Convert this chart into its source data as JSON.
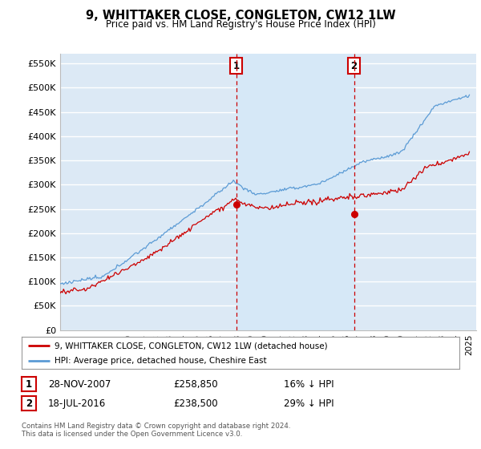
{
  "title": "9, WHITTAKER CLOSE, CONGLETON, CW12 1LW",
  "subtitle": "Price paid vs. HM Land Registry's House Price Index (HPI)",
  "ylabel_ticks": [
    "£0",
    "£50K",
    "£100K",
    "£150K",
    "£200K",
    "£250K",
    "£300K",
    "£350K",
    "£400K",
    "£450K",
    "£500K",
    "£550K"
  ],
  "ytick_vals": [
    0,
    50000,
    100000,
    150000,
    200000,
    250000,
    300000,
    350000,
    400000,
    450000,
    500000,
    550000
  ],
  "ylim": [
    0,
    570000
  ],
  "xlim_start": 1995.0,
  "xlim_end": 2025.5,
  "background_color": "#dce9f5",
  "grid_color": "#ffffff",
  "hpi_color": "#5b9bd5",
  "price_color": "#cc0000",
  "shade_color": "#d6e8f7",
  "marker1_x": 2007.92,
  "marker1_y": 258850,
  "marker1_label": "1",
  "marker1_date": "28-NOV-2007",
  "marker1_price": "£258,850",
  "marker1_pct": "16% ↓ HPI",
  "marker2_x": 2016.54,
  "marker2_y": 238500,
  "marker2_label": "2",
  "marker2_date": "18-JUL-2016",
  "marker2_price": "£238,500",
  "marker2_pct": "29% ↓ HPI",
  "legend_line1": "9, WHITTAKER CLOSE, CONGLETON, CW12 1LW (detached house)",
  "legend_line2": "HPI: Average price, detached house, Cheshire East",
  "footer1": "Contains HM Land Registry data © Crown copyright and database right 2024.",
  "footer2": "This data is licensed under the Open Government Licence v3.0.",
  "xtick_years": [
    1995,
    1996,
    1997,
    1998,
    1999,
    2000,
    2001,
    2002,
    2003,
    2004,
    2005,
    2006,
    2007,
    2008,
    2009,
    2010,
    2011,
    2012,
    2013,
    2014,
    2015,
    2016,
    2017,
    2018,
    2019,
    2020,
    2021,
    2022,
    2023,
    2024,
    2025
  ]
}
